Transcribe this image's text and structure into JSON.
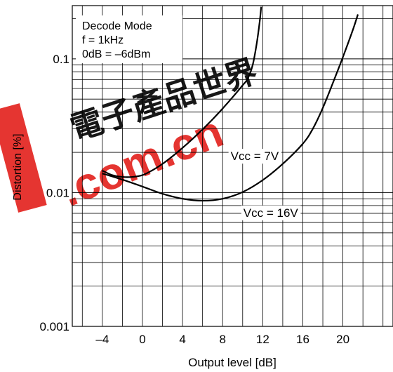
{
  "chart_data": {
    "type": "line",
    "xlabel": "Output level [dB]",
    "ylabel": "Distortion [%]",
    "xlim": [
      -7,
      25
    ],
    "ylim": [
      0.001,
      0.25
    ],
    "yscale": "log",
    "grid": true,
    "x_ticks": [
      -4,
      0,
      4,
      8,
      12,
      16,
      20
    ],
    "x_tick_labels": [
      "–4",
      "0",
      "4",
      "8",
      "12",
      "16",
      "20"
    ],
    "y_tick_values": [
      0.001,
      0.01,
      0.1
    ],
    "y_tick_labels": [
      "0.001",
      "0.01",
      "0.1"
    ],
    "annotation_lines": [
      "Decode Mode",
      "f = 1kHz",
      "0dB = –6dBm"
    ],
    "series": [
      {
        "name": "Vcc = 7V",
        "label_pos": [
          11.2,
          0.0175
        ],
        "x": [
          -4,
          -3,
          -2,
          -1,
          0,
          1,
          2,
          3,
          4,
          5,
          6,
          7,
          8,
          9,
          10,
          10.5,
          11,
          11.4,
          11.7,
          11.85
        ],
        "y": [
          0.0146,
          0.0135,
          0.0131,
          0.0131,
          0.0135,
          0.0147,
          0.0164,
          0.0187,
          0.0216,
          0.0252,
          0.0297,
          0.0353,
          0.0425,
          0.0517,
          0.0635,
          0.071,
          0.09,
          0.13,
          0.19,
          0.245
        ]
      },
      {
        "name": "Vcc = 16V",
        "label_pos": [
          12.8,
          0.0066
        ],
        "x": [
          -4,
          -2,
          0,
          2,
          4,
          6,
          8,
          10,
          12,
          14,
          16,
          17,
          18,
          19,
          20,
          21,
          21.5
        ],
        "y": [
          0.0139,
          0.0125,
          0.0111,
          0.0098,
          0.009,
          0.0087,
          0.009,
          0.0101,
          0.0124,
          0.0164,
          0.0232,
          0.03,
          0.043,
          0.066,
          0.103,
          0.165,
          0.215
        ]
      }
    ]
  },
  "watermark": {
    "chinese_text": "電子產品世界",
    "latin_text": ".com.cn",
    "accent_color": "#e3201b"
  }
}
